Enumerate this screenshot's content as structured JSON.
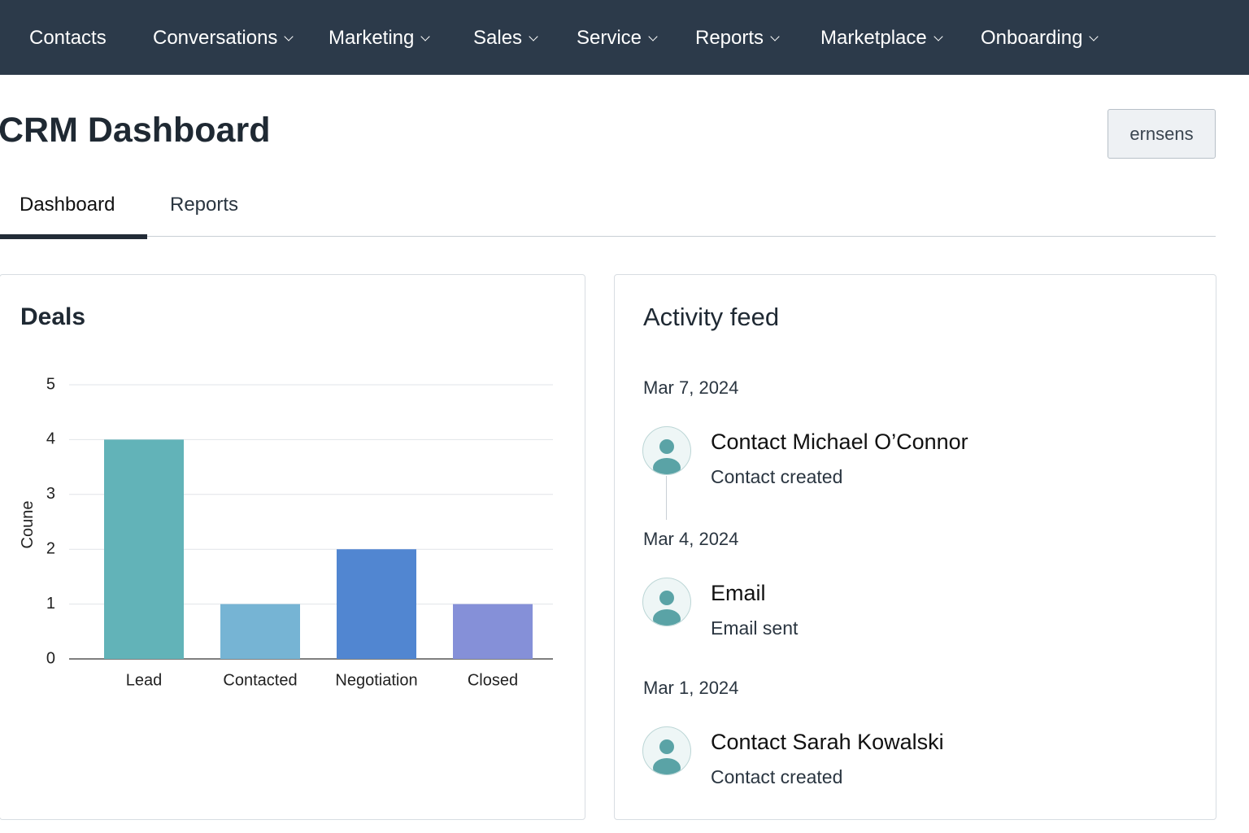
{
  "nav": {
    "items": [
      "Contacts",
      "Conversations",
      "Marketing",
      "Sales",
      "Service",
      "Reports",
      "Marketplace",
      "Onboarding"
    ]
  },
  "header": {
    "title": "CRM Dashboard",
    "button": "ernsens"
  },
  "tabs": [
    "Dashboard",
    "Reports"
  ],
  "chart_data": {
    "type": "bar",
    "title": "Deals",
    "y_label": "Coune",
    "categories": [
      "Lead",
      "Contacted",
      "Negotiation",
      "Closed"
    ],
    "values": [
      4,
      1,
      2,
      1
    ],
    "colors": [
      "#62b3b8",
      "#76b4d4",
      "#5186d1",
      "#8590d8"
    ],
    "ylim": [
      0,
      5
    ],
    "yticks": [
      0,
      1,
      2,
      3,
      4,
      5
    ],
    "grid": true
  },
  "activity_feed": {
    "title": "Activity feed",
    "entries": [
      {
        "date": "Mar 7, 2024",
        "title": "Contact Michael O’Connor",
        "subtitle": "Contact created"
      },
      {
        "date": "Mar 4, 2024",
        "title": "Email",
        "subtitle": "Email sent"
      },
      {
        "date": "Mar 1, 2024",
        "title": "Contact Sarah Kowalski",
        "subtitle": "Contact created"
      }
    ]
  }
}
